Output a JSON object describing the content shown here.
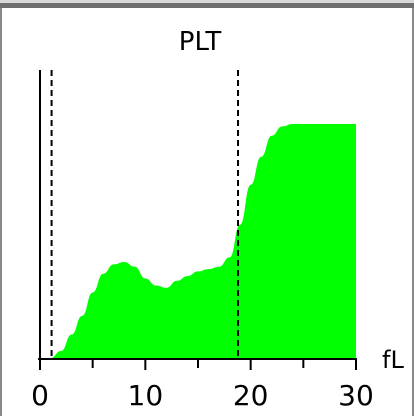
{
  "chart_data": {
    "type": "area",
    "title": "PLT",
    "xlabel": "",
    "ylabel": "",
    "x_unit": "fL",
    "xlim": [
      0,
      30
    ],
    "ylim": [
      0,
      100
    ],
    "x_ticks": [
      0,
      10,
      20,
      30
    ],
    "x_minor_ticks": [
      5,
      15,
      25
    ],
    "tick_labels": [
      "0",
      "10",
      "20",
      "30"
    ],
    "grid": false,
    "series": [
      {
        "color": "#00ff00",
        "x": [
          1.0,
          2.0,
          3.0,
          4.0,
          5.0,
          6.0,
          7.0,
          8.0,
          9.0,
          10.0,
          11.0,
          12.0,
          13.0,
          14.0,
          15.0,
          16.0,
          17.0,
          18.0,
          19.0,
          20.0,
          21.0,
          22.0,
          23.0,
          24.0,
          25.0,
          26.0,
          27.0,
          28.0,
          29.0,
          30.0
        ],
        "y": [
          0,
          3,
          10,
          18,
          28,
          36,
          40,
          41,
          39,
          34,
          31,
          30,
          33,
          35,
          37,
          38,
          39,
          43,
          57,
          74,
          86,
          95,
          99,
          100,
          100,
          100,
          100,
          100,
          100,
          100
        ]
      }
    ],
    "reference_lines": [
      {
        "x": 1.1,
        "style": "dashed",
        "color": "#000000"
      },
      {
        "x": 18.8,
        "style": "dashed",
        "color": "#000000"
      }
    ],
    "y_axis_line": {
      "x": 0,
      "color": "#000000"
    }
  }
}
